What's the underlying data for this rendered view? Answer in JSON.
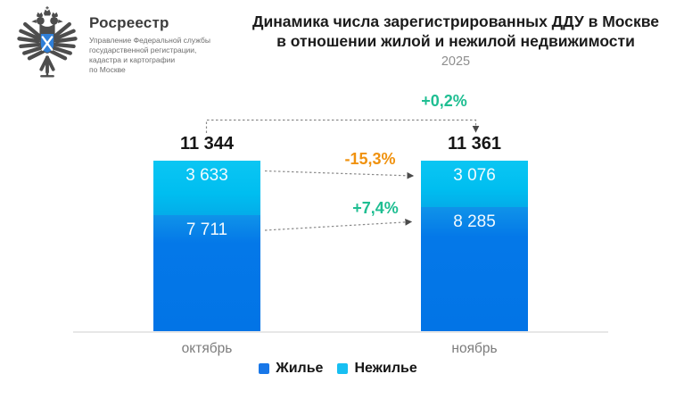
{
  "logo": {
    "name": "Росреестр",
    "department": "Управление Федеральной службы\nгосударственной регистрации,\nкадастра и картографии\nпо Москве",
    "emblem": "double-headed-eagle-with-blue-shield",
    "shield_color": "#2F7FD8"
  },
  "header": {
    "title_line1": "Динамика числа зарегистрированных ДДУ в Москве",
    "title_line2": "в отношении жилой и нежилой недвижимости",
    "year": "2025"
  },
  "chart_data": {
    "type": "bar",
    "stacked": true,
    "title": "Динамика числа зарегистрированных ДДУ в Москве в отношении жилой и нежилой недвижимости",
    "subtitle": "2025",
    "categories": [
      "октябрь",
      "ноябрь"
    ],
    "series": [
      {
        "name": "Жилье",
        "color": "#0478E8",
        "values": [
          7711,
          8285
        ],
        "labels": [
          "7 711",
          "8 285"
        ]
      },
      {
        "name": "Нежилье",
        "color": "#00BEF0",
        "values": [
          3633,
          3076
        ],
        "labels": [
          "3 633",
          "3 076"
        ]
      }
    ],
    "totals": [
      11344,
      11361
    ],
    "total_labels": [
      "11 344",
      "11 361"
    ],
    "annotations": [
      {
        "label": "+0,2%",
        "applies_to": "totals",
        "color": "#1FBE92"
      },
      {
        "label": "-15,3%",
        "applies_to": "Нежилье",
        "color": "#F0920F"
      },
      {
        "label": "+7,4%",
        "applies_to": "Жилье",
        "color": "#1FBE92"
      }
    ],
    "legend_position": "bottom",
    "grid": false,
    "connector_color": "#8A8A8A"
  }
}
